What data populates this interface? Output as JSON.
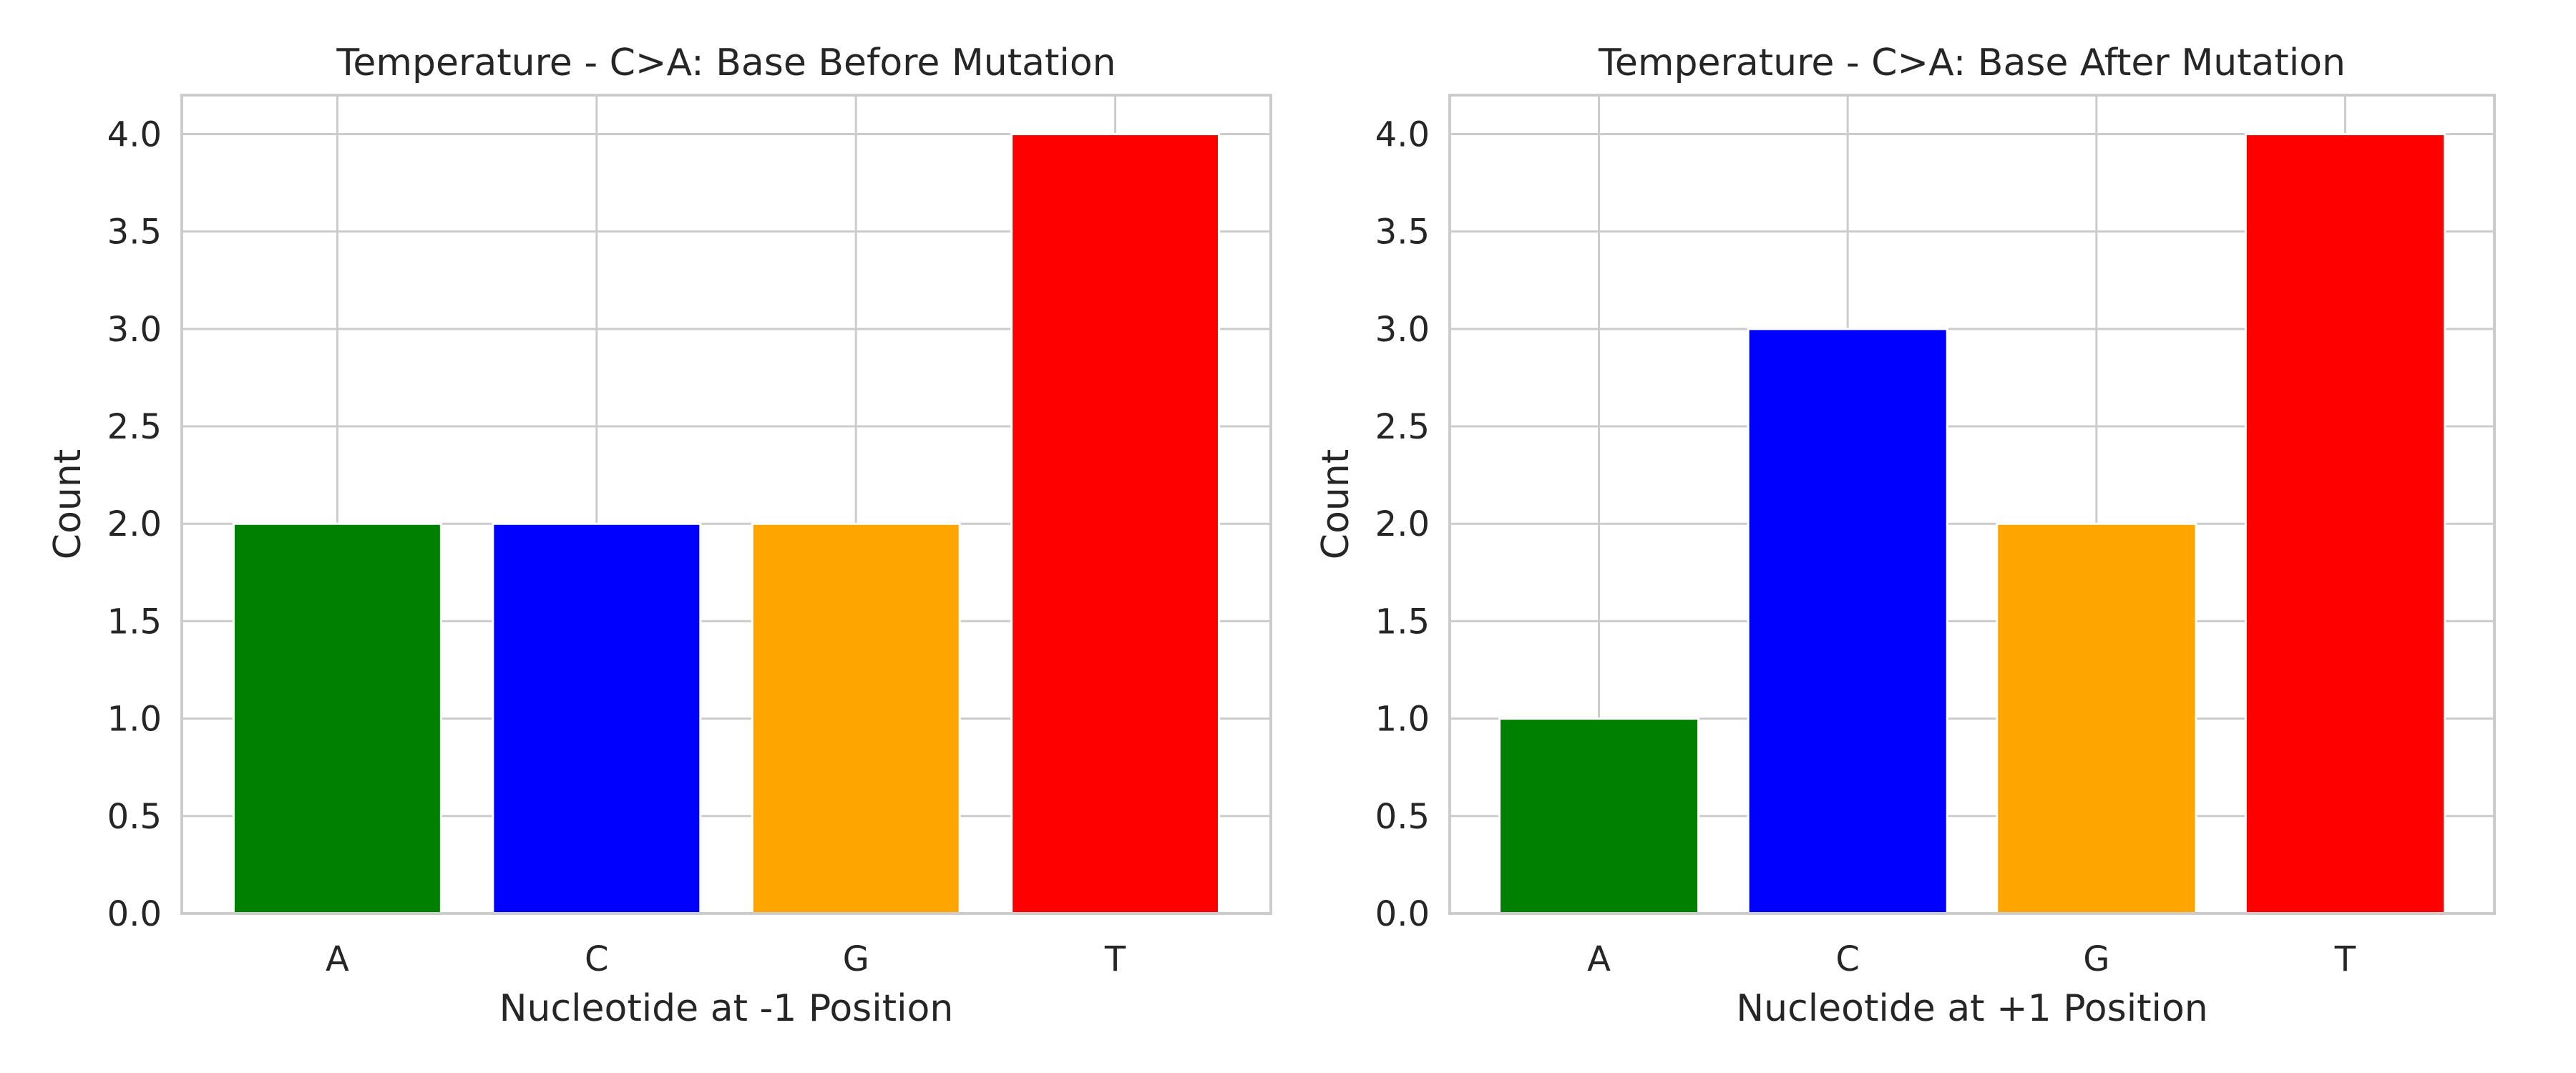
{
  "chart_data": [
    {
      "type": "bar",
      "title": "Temperature - C>A: Base Before Mutation",
      "xlabel": "Nucleotide at -1 Position",
      "ylabel": "Count",
      "categories": [
        "A",
        "C",
        "G",
        "T"
      ],
      "values": [
        2,
        2,
        2,
        4
      ],
      "colors": [
        "#008000",
        "#0000ff",
        "#ffa500",
        "#ff0000"
      ],
      "ylim": [
        0,
        4.2
      ],
      "yticks": [
        0.0,
        0.5,
        1.0,
        1.5,
        2.0,
        2.5,
        3.0,
        3.5,
        4.0
      ],
      "ytick_labels": [
        "0.0",
        "0.5",
        "1.0",
        "1.5",
        "2.0",
        "2.5",
        "3.0",
        "3.5",
        "4.0"
      ],
      "grid": true,
      "legend": "none"
    },
    {
      "type": "bar",
      "title": "Temperature - C>A: Base After Mutation",
      "xlabel": "Nucleotide at +1 Position",
      "ylabel": "Count",
      "categories": [
        "A",
        "C",
        "G",
        "T"
      ],
      "values": [
        1,
        3,
        2,
        4
      ],
      "colors": [
        "#008000",
        "#0000ff",
        "#ffa500",
        "#ff0000"
      ],
      "ylim": [
        0,
        4.2
      ],
      "yticks": [
        0.0,
        0.5,
        1.0,
        1.5,
        2.0,
        2.5,
        3.0,
        3.5,
        4.0
      ],
      "ytick_labels": [
        "0.0",
        "0.5",
        "1.0",
        "1.5",
        "2.0",
        "2.5",
        "3.0",
        "3.5",
        "4.0"
      ],
      "grid": true,
      "legend": "none"
    }
  ]
}
